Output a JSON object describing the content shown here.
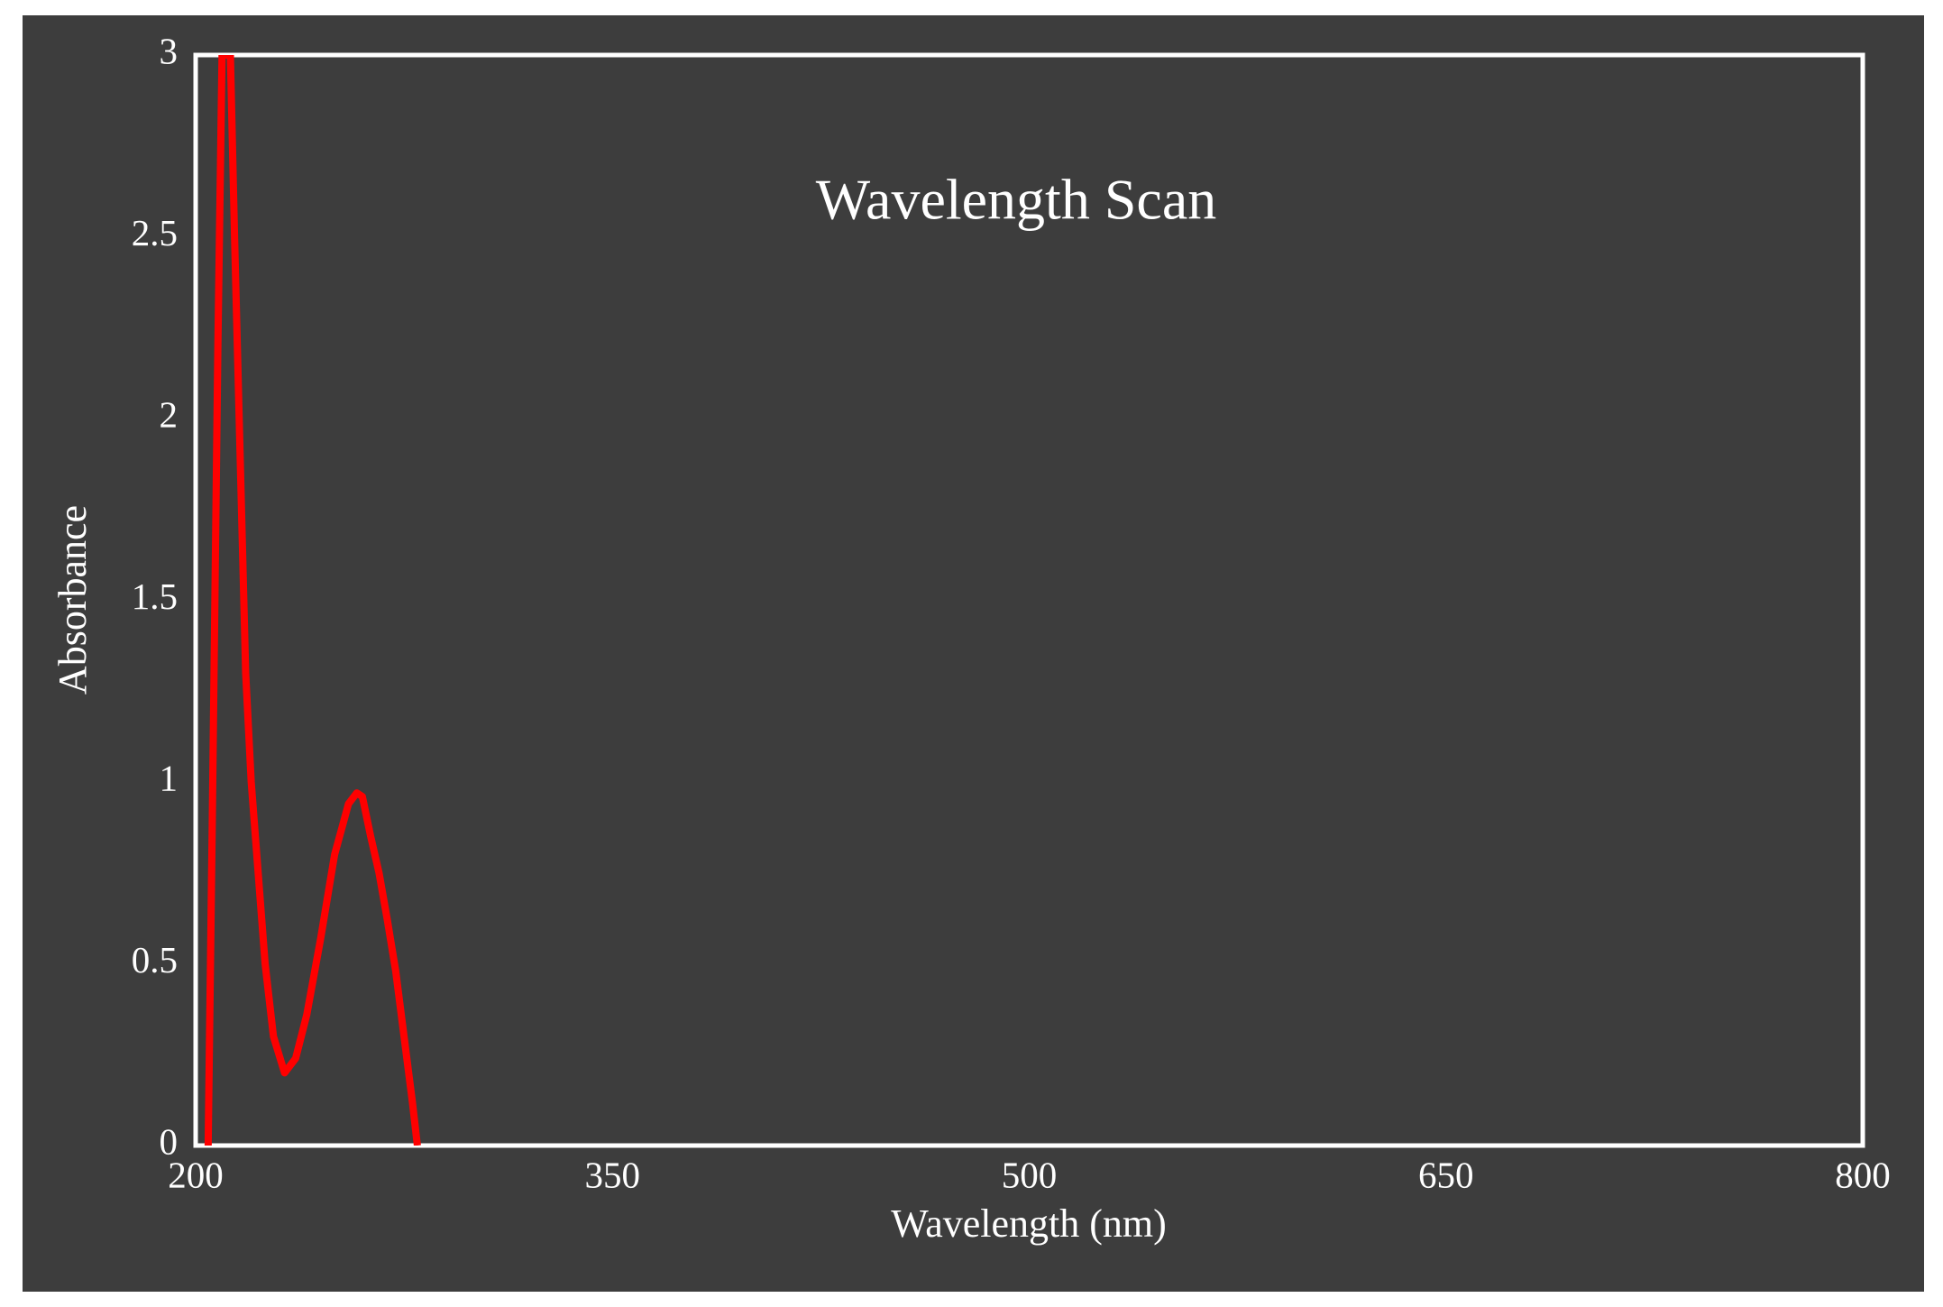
{
  "chart_data": {
    "type": "line",
    "title": "Wavelength Scan",
    "x_label": "Wavelength (nm)",
    "y_label": "Absorbance",
    "x": [
      204.5,
      206,
      208,
      209.5,
      212.5,
      214,
      216,
      218,
      220,
      222,
      225,
      228,
      232,
      236,
      240,
      245,
      250,
      255,
      258,
      260,
      263,
      266,
      269,
      272,
      275,
      278,
      279.8
    ],
    "series": [
      {
        "name": "Absorbance",
        "color": "#ff0000",
        "values": [
          0,
          0.9,
          2.2,
          3,
          3,
          2.5,
          1.9,
          1.3,
          1.0,
          0.8,
          0.5,
          0.3,
          0.2,
          0.24,
          0.36,
          0.57,
          0.8,
          0.94,
          0.97,
          0.96,
          0.85,
          0.75,
          0.62,
          0.48,
          0.3,
          0.12,
          0
        ]
      }
    ],
    "xlim": [
      200,
      800
    ],
    "xticks": [
      200,
      350,
      500,
      650,
      800
    ],
    "ylim": [
      0,
      3
    ],
    "yticks": [
      0,
      0.5,
      1,
      1.5,
      2,
      2.5,
      3
    ],
    "grid": false
  }
}
